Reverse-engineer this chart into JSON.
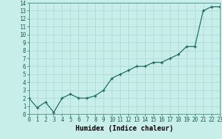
{
  "x": [
    0,
    1,
    2,
    3,
    4,
    5,
    6,
    7,
    8,
    9,
    10,
    11,
    12,
    13,
    14,
    15,
    16,
    17,
    18,
    19,
    20,
    21,
    22,
    23
  ],
  "y": [
    2.0,
    0.8,
    1.5,
    0.2,
    2.0,
    2.5,
    2.0,
    2.0,
    2.3,
    3.0,
    4.5,
    5.0,
    5.5,
    6.0,
    6.0,
    6.5,
    6.5,
    7.0,
    7.5,
    8.5,
    8.5,
    13.0,
    13.5,
    13.5
  ],
  "xlabel": "Humidex (Indice chaleur)",
  "xlim": [
    0,
    23
  ],
  "ylim": [
    0,
    14
  ],
  "yticks": [
    0,
    1,
    2,
    3,
    4,
    5,
    6,
    7,
    8,
    9,
    10,
    11,
    12,
    13,
    14
  ],
  "xticks": [
    0,
    1,
    2,
    3,
    4,
    5,
    6,
    7,
    8,
    9,
    10,
    11,
    12,
    13,
    14,
    15,
    16,
    17,
    18,
    19,
    20,
    21,
    22,
    23
  ],
  "line_color": "#1a6b5a",
  "marker_color": "#1a6b5a",
  "bg_color": "#c8eeea",
  "grid_color": "#b0d8d4",
  "tick_fontsize": 5.5,
  "xlabel_fontsize": 7
}
